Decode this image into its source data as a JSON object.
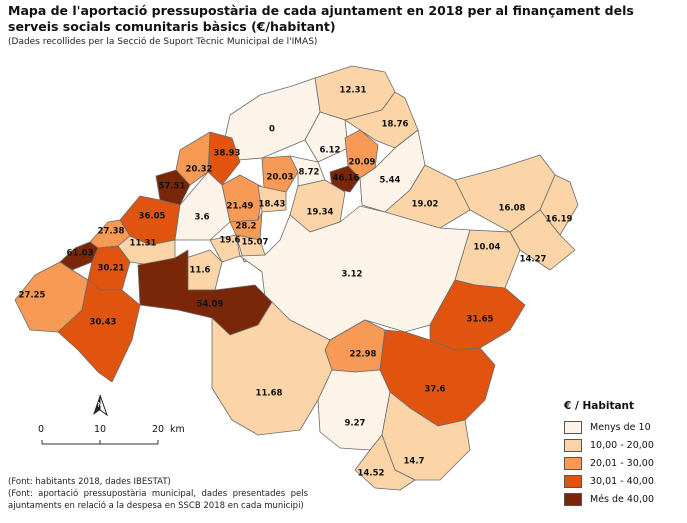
{
  "title": "Mapa de l'aportació pressupostària de cada ajuntament en 2018 per al finançament dels serveis socials comunitaris bàsics (€/habitant)",
  "subtitle": "(Dades recollides per la Secció de Suport Tècnic Municipal de l'IMAS)",
  "colors": {
    "class1": "#fdf4e9",
    "class2": "#fbd4a8",
    "class3": "#f79a55",
    "class4": "#e05410",
    "class5": "#7a2608",
    "border": "#6b6b6b"
  },
  "municipalities": [
    {
      "value": "12.31",
      "class": "class2"
    },
    {
      "value": "0",
      "class": "class1"
    },
    {
      "value": "18.76",
      "class": "class2"
    },
    {
      "value": "6.12",
      "class": "class1"
    },
    {
      "value": "20.09",
      "class": "class3"
    },
    {
      "value": "38.93",
      "class": "class4"
    },
    {
      "value": "20.32",
      "class": "class3"
    },
    {
      "value": "20.03",
      "class": "class3"
    },
    {
      "value": "8.72",
      "class": "class1"
    },
    {
      "value": "46.16",
      "class": "class5"
    },
    {
      "value": "5.44",
      "class": "class1"
    },
    {
      "value": "57.51",
      "class": "class5"
    },
    {
      "value": "21.49",
      "class": "class3"
    },
    {
      "value": "18.43",
      "class": "class2"
    },
    {
      "value": "19.34",
      "class": "class2"
    },
    {
      "value": "19.02",
      "class": "class2"
    },
    {
      "value": "16.08",
      "class": "class2"
    },
    {
      "value": "36.05",
      "class": "class4"
    },
    {
      "value": "3.6",
      "class": "class1"
    },
    {
      "value": "28.2",
      "class": "class3"
    },
    {
      "value": "16.19",
      "class": "class2"
    },
    {
      "value": "27.38",
      "class": "class3"
    },
    {
      "value": "19.6",
      "class": "class2"
    },
    {
      "value": "15.07",
      "class": "class2"
    },
    {
      "value": "11.31",
      "class": "class2"
    },
    {
      "value": "61.03",
      "class": "class5"
    },
    {
      "value": "3.12",
      "class": "class1"
    },
    {
      "value": "10.04",
      "class": "class2"
    },
    {
      "value": "14.27",
      "class": "class2"
    },
    {
      "value": "11.6",
      "class": "class2"
    },
    {
      "value": "30.21",
      "class": "class4"
    },
    {
      "value": "27.25",
      "class": "class3"
    },
    {
      "value": "31.65",
      "class": "class4"
    },
    {
      "value": "54.09",
      "class": "class5"
    },
    {
      "value": "30.43",
      "class": "class4"
    },
    {
      "value": "22.98",
      "class": "class3"
    },
    {
      "value": "37.6",
      "class": "class4"
    },
    {
      "value": "11.68",
      "class": "class2"
    },
    {
      "value": "9.27",
      "class": "class1"
    },
    {
      "value": "14.7",
      "class": "class2"
    },
    {
      "value": "14.52",
      "class": "class2"
    }
  ],
  "legend": {
    "title": "€ / Habitant",
    "items": [
      {
        "label": "Menys de 10",
        "class": "class1"
      },
      {
        "label": "10,00 - 20,00",
        "class": "class2"
      },
      {
        "label": "20,01 - 30,00",
        "class": "class3"
      },
      {
        "label": "30,01 - 40,00",
        "class": "class4"
      },
      {
        "label": "Més de 40,00",
        "class": "class5"
      }
    ]
  },
  "scale": {
    "ticks": [
      "0",
      "10",
      "20"
    ],
    "unit": "km"
  },
  "north_label": "N",
  "footer": {
    "line1": "(Font: habitants 2018, dades IBESTAT)",
    "line2": "(Font: aportació pressupostària municipal, dades presentades pels ajuntaments en relació a la despesa en SSCB 2018 en cada municipi)"
  }
}
